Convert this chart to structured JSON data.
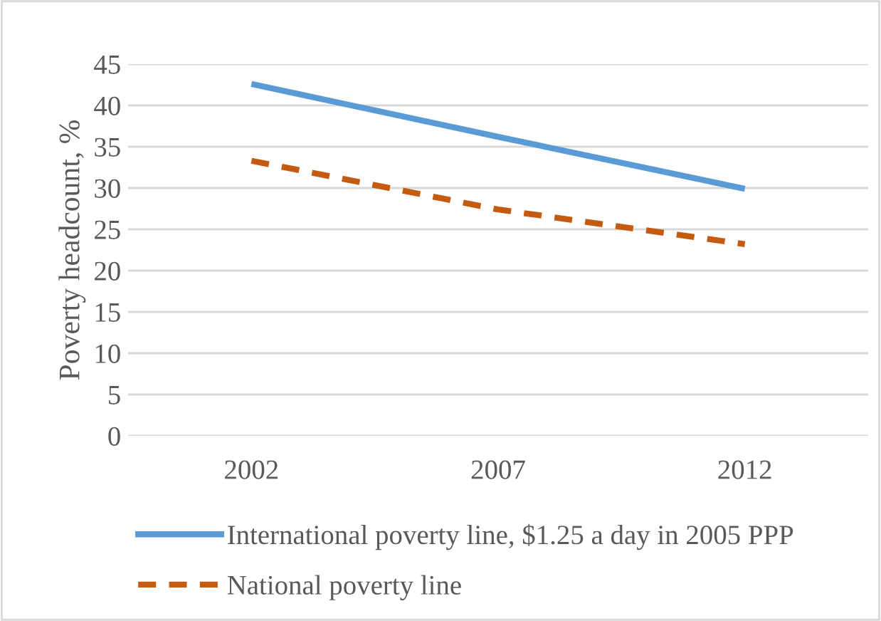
{
  "chart_data": {
    "type": "line",
    "ylabel": "Poverty headcount, %",
    "categories": [
      "2002",
      "2007",
      "2012"
    ],
    "series": [
      {
        "name": "International poverty line, $1.25 a day in 2005 PPP",
        "color": "#5b9bd5",
        "values": [
          42.6,
          36.2,
          29.9
        ],
        "line_style": "solid"
      },
      {
        "name": "National poverty line",
        "color": "#c55a11",
        "values": [
          33.3,
          27.4,
          23.2
        ],
        "line_style": "dashed"
      }
    ],
    "ylim": [
      0,
      45
    ],
    "yticks": [
      0,
      5,
      10,
      15,
      20,
      25,
      30,
      35,
      40,
      45
    ],
    "grid": "y",
    "legend": "bottom",
    "marker": "none"
  }
}
